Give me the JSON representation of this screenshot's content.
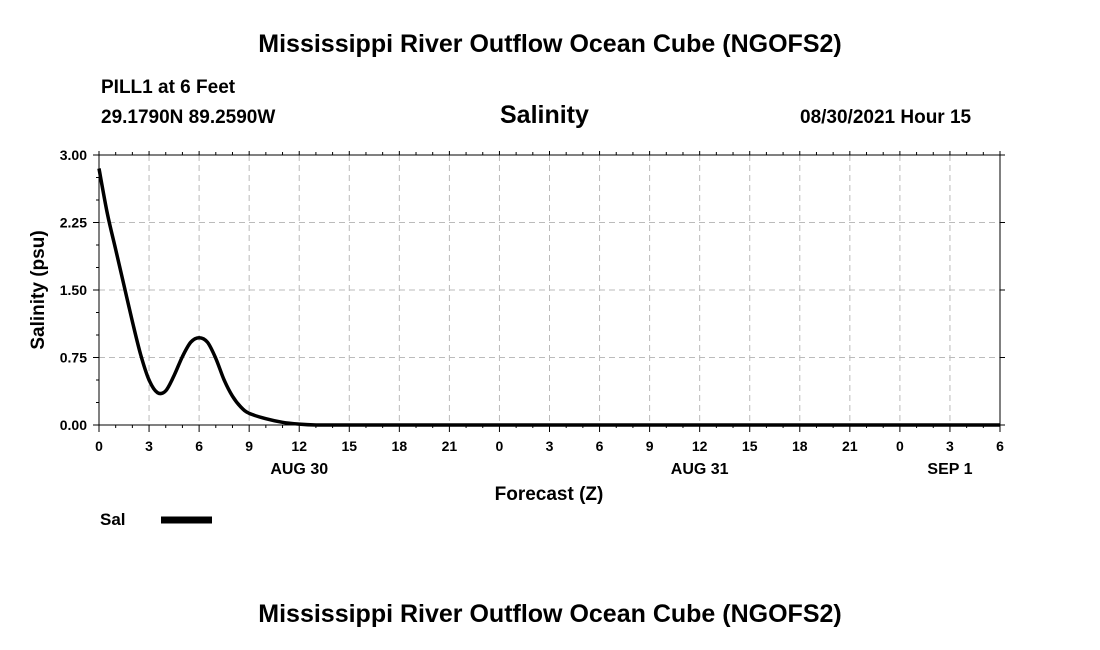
{
  "header": {
    "title_top": "Mississippi River Outflow Ocean Cube (NGOFS2)",
    "title_bottom": "Mississippi River Outflow Ocean Cube (NGOFS2)",
    "station": "PILL1 at 6 Feet",
    "coords": "29.1790N  89.2590W",
    "variable": "Salinity",
    "datetime": "08/30/2021 Hour 15"
  },
  "chart_data": {
    "type": "line",
    "ylabel": "Salinity (psu)",
    "xlabel": "Forecast (Z)",
    "ylim": [
      0,
      3
    ],
    "xlim": [
      0,
      54
    ],
    "ytick_values": [
      0,
      0.75,
      1.5,
      2.25,
      3.0
    ],
    "ytick_labels": [
      "0.00",
      "0.75",
      "1.50",
      "2.25",
      "3.00"
    ],
    "xtick_values": [
      0,
      3,
      6,
      9,
      12,
      15,
      18,
      21,
      24,
      27,
      30,
      33,
      36,
      39,
      42,
      45,
      48,
      51,
      54
    ],
    "xtick_labels": [
      "0",
      "3",
      "6",
      "9",
      "12",
      "15",
      "18",
      "21",
      "0",
      "3",
      "6",
      "9",
      "12",
      "15",
      "18",
      "21",
      "0",
      "3",
      "6"
    ],
    "day_labels": [
      {
        "x": 12,
        "label": "AUG 30"
      },
      {
        "x": 36,
        "label": "AUG 31"
      },
      {
        "x": 51,
        "label": "SEP 1"
      }
    ],
    "grid": true,
    "legend_position": "bottom-left",
    "series": [
      {
        "name": "Sal",
        "color": "#000000",
        "x": [
          0,
          0.5,
          1,
          1.5,
          2,
          2.5,
          3,
          3.5,
          4,
          4.5,
          5,
          5.5,
          6,
          6.5,
          7,
          7.5,
          8,
          8.5,
          9,
          10,
          11,
          12,
          13,
          14,
          16,
          20,
          24,
          30,
          36,
          42,
          48,
          54
        ],
        "y": [
          2.85,
          2.35,
          1.95,
          1.55,
          1.15,
          0.78,
          0.5,
          0.36,
          0.38,
          0.55,
          0.76,
          0.92,
          0.97,
          0.92,
          0.74,
          0.5,
          0.32,
          0.2,
          0.13,
          0.07,
          0.03,
          0.01,
          0.0,
          0.0,
          0.0,
          0.0,
          0.0,
          0.0,
          0.0,
          0.0,
          0.0,
          0.0
        ]
      }
    ]
  }
}
